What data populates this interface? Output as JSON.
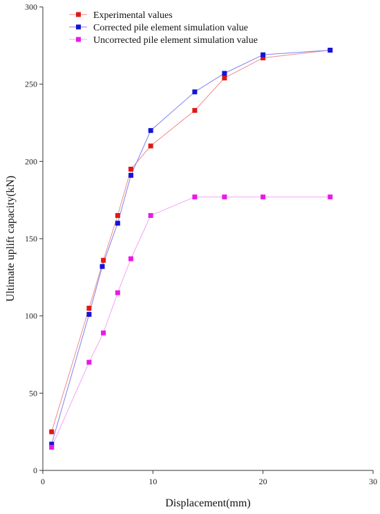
{
  "chart_data": {
    "type": "line",
    "title": "",
    "xlabel": "Displacement(mm)",
    "ylabel": "Ultimate uplift capacity(kN)",
    "xlim": [
      0,
      30
    ],
    "ylim": [
      0,
      300
    ],
    "xticks": [
      0,
      10,
      20,
      30
    ],
    "yticks": [
      0,
      50,
      100,
      150,
      200,
      250,
      300
    ],
    "grid": false,
    "legend_position": "top-left",
    "series": [
      {
        "name": "Experimental values",
        "color": "#e01818",
        "line_color": "#f08a8a",
        "x": [
          0.8,
          4.2,
          5.5,
          6.8,
          8.0,
          9.8,
          13.8,
          16.5,
          20.0,
          26.1
        ],
        "y": [
          25,
          105,
          136,
          165,
          195,
          210,
          233,
          254,
          267,
          272
        ]
      },
      {
        "name": "Corrected pile element simulation value",
        "color": "#1414d8",
        "line_color": "#7f7ff0",
        "x": [
          0.8,
          4.2,
          5.4,
          6.8,
          8.0,
          9.8,
          13.8,
          16.5,
          20.0,
          26.1
        ],
        "y": [
          17,
          101,
          132,
          160,
          191,
          220,
          245,
          257,
          269,
          272
        ]
      },
      {
        "name": "Uncorrected pile element simulation value",
        "color": "#e81ae8",
        "line_color": "#f3a3f3",
        "x": [
          0.8,
          4.2,
          5.5,
          6.8,
          8.0,
          9.8,
          13.8,
          16.5,
          20.0,
          26.1
        ],
        "y": [
          15,
          70,
          89,
          115,
          137,
          165,
          177,
          177,
          177,
          177
        ]
      }
    ]
  }
}
